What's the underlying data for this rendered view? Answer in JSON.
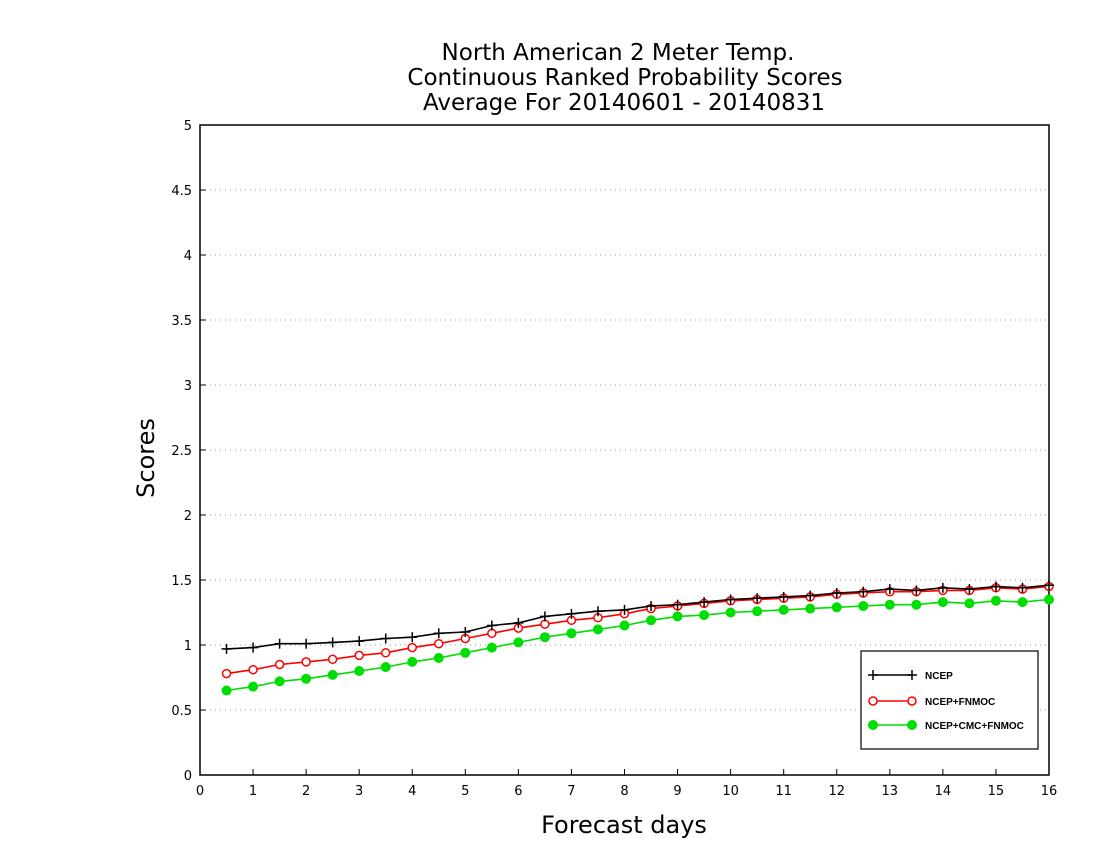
{
  "chart_data": {
    "type": "line",
    "title": [
      "North American 2 Meter Temp.",
      "Continuous Ranked Probability Scores",
      "Average For 20140601 - 20140831"
    ],
    "xlabel": "Forecast days",
    "ylabel": "Scores",
    "xlim": [
      0,
      16
    ],
    "ylim": [
      0,
      5
    ],
    "x_ticks": [
      "0",
      "1",
      "2",
      "3",
      "4",
      "5",
      "6",
      "7",
      "8",
      "9",
      "10",
      "11",
      "12",
      "13",
      "14",
      "15",
      "16"
    ],
    "y_ticks": [
      "0",
      "0.5",
      "1",
      "1.5",
      "2",
      "2.5",
      "3",
      "3.5",
      "4",
      "4.5",
      "5"
    ],
    "grid": "horizontal dotted",
    "legend_position": "bottom-right",
    "x": [
      0.5,
      1,
      1.5,
      2,
      2.5,
      3,
      3.5,
      4,
      4.5,
      5,
      5.5,
      6,
      6.5,
      7,
      7.5,
      8,
      8.5,
      9,
      9.5,
      10,
      10.5,
      11,
      11.5,
      12,
      12.5,
      13,
      13.5,
      14,
      14.5,
      15,
      15.5,
      16
    ],
    "series": [
      {
        "name": "NCEP",
        "color": "#000000",
        "marker": "plus",
        "values": [
          0.97,
          0.98,
          1.01,
          1.01,
          1.02,
          1.03,
          1.05,
          1.06,
          1.09,
          1.1,
          1.15,
          1.17,
          1.22,
          1.24,
          1.26,
          1.27,
          1.3,
          1.31,
          1.33,
          1.35,
          1.36,
          1.37,
          1.38,
          1.4,
          1.41,
          1.43,
          1.42,
          1.44,
          1.43,
          1.45,
          1.44,
          1.46
        ]
      },
      {
        "name": "NCEP+FNMOC",
        "color": "#ff0000",
        "marker": "open-circle",
        "values": [
          0.78,
          0.81,
          0.85,
          0.87,
          0.89,
          0.92,
          0.94,
          0.98,
          1.01,
          1.05,
          1.09,
          1.13,
          1.16,
          1.19,
          1.21,
          1.24,
          1.28,
          1.3,
          1.32,
          1.34,
          1.35,
          1.36,
          1.37,
          1.39,
          1.4,
          1.41,
          1.41,
          1.42,
          1.42,
          1.44,
          1.43,
          1.45
        ]
      },
      {
        "name": "NCEP+CMC+FNMOC",
        "color": "#00dd00",
        "marker": "filled-circle",
        "values": [
          0.65,
          0.68,
          0.72,
          0.74,
          0.77,
          0.8,
          0.83,
          0.87,
          0.9,
          0.94,
          0.98,
          1.02,
          1.06,
          1.09,
          1.12,
          1.15,
          1.19,
          1.22,
          1.23,
          1.25,
          1.26,
          1.27,
          1.28,
          1.29,
          1.3,
          1.31,
          1.31,
          1.33,
          1.32,
          1.34,
          1.33,
          1.35
        ]
      }
    ]
  }
}
